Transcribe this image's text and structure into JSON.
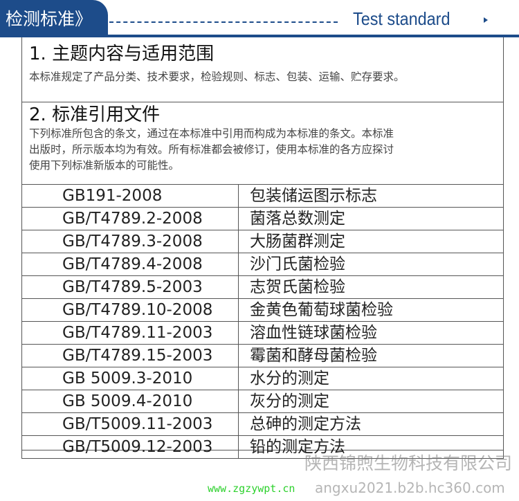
{
  "header": {
    "title_cn": "检测标准》",
    "title_en": "Test standard",
    "arrow_icon": "play-arrow-icon",
    "accent_color": "#1d4c8a"
  },
  "section1": {
    "title": "1. 主题内容与适用范围",
    "text": "本标准规定了产品分类、技术要求，检验规则、标志、包装、运输、贮存要求。"
  },
  "section2": {
    "title": "2. 标准引用文件",
    "lines": [
      "下列标准所包含的条文，通过在本标准中引用而构成为本标准的条文。本标准",
      "出版时，所示版本均为有效。所有标准都会被修订，使用本标准的各方应探讨",
      "使用下列标准新版本的可能性。"
    ]
  },
  "standards": [
    {
      "code": "GB191-2008",
      "name": "包装储运图示标志"
    },
    {
      "code": "GB/T4789.2-2008",
      "name": "菌落总数测定"
    },
    {
      "code": "GB/T4789.3-2008",
      "name": "大肠菌群测定"
    },
    {
      "code": "GB/T4789.4-2008",
      "name": "沙门氏菌检验"
    },
    {
      "code": "GB/T4789.5-2003",
      "name": "志贺氏菌检验"
    },
    {
      "code": "GB/T4789.10-2008",
      "name": "金黄色葡萄球菌检验"
    },
    {
      "code": "GB/T4789.11-2003",
      "name": "溶血性链球菌检验"
    },
    {
      "code": "GB/T4789.15-2003",
      "name": "霉菌和酵母菌检验"
    },
    {
      "code": "GB 5009.3-2010",
      "name": "水分的测定"
    },
    {
      "code": "GB 5009.4-2010",
      "name": "灰分的测定"
    },
    {
      "code": "GB/T5009.11-2003",
      "name": "总砷的测定方法"
    },
    {
      "code": "GB/T5009.12-2003",
      "name": "铅的测定方法"
    }
  ],
  "watermark": {
    "company": "陕西锦煦生物科技有限公司",
    "url": "angxu2021.b2b.hc360.com",
    "site": "www.zgzywpt.cn"
  }
}
